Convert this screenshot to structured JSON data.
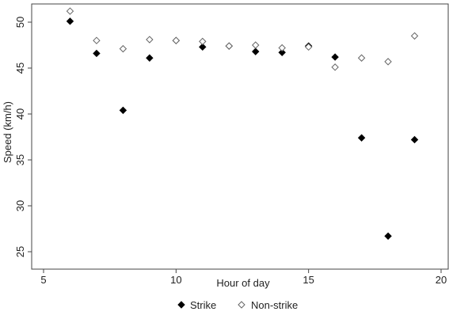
{
  "chart_data": {
    "type": "scatter",
    "title": "",
    "xlabel": "Hour of day",
    "ylabel": "Speed (km/h)",
    "xlim": [
      5,
      20
    ],
    "ylim": [
      25,
      52.5
    ],
    "x_ticks": [
      "5",
      "10",
      "15",
      "20"
    ],
    "y_ticks": [
      "25",
      "30",
      "35",
      "40",
      "45",
      "50"
    ],
    "grid": false,
    "legend_position": "bottom",
    "series": [
      {
        "name": "Strike",
        "marker": "filled-diamond",
        "color": "#000000",
        "points": [
          {
            "x": 6,
            "y": 50.1
          },
          {
            "x": 7,
            "y": 46.6
          },
          {
            "x": 8,
            "y": 40.4
          },
          {
            "x": 9,
            "y": 46.1
          },
          {
            "x": 10,
            "y": 48.0
          },
          {
            "x": 11,
            "y": 47.3
          },
          {
            "x": 12,
            "y": 47.4
          },
          {
            "x": 13,
            "y": 46.8
          },
          {
            "x": 14,
            "y": 46.7
          },
          {
            "x": 15,
            "y": 47.4
          },
          {
            "x": 16,
            "y": 46.2
          },
          {
            "x": 17,
            "y": 37.4
          },
          {
            "x": 18,
            "y": 26.7
          },
          {
            "x": 19,
            "y": 37.2
          }
        ]
      },
      {
        "name": "Non-strike",
        "marker": "hollow-diamond",
        "color": "#666666",
        "points": [
          {
            "x": 6,
            "y": 51.2
          },
          {
            "x": 7,
            "y": 48.0
          },
          {
            "x": 8,
            "y": 47.1
          },
          {
            "x": 9,
            "y": 48.1
          },
          {
            "x": 10,
            "y": 48.0
          },
          {
            "x": 11,
            "y": 47.9
          },
          {
            "x": 12,
            "y": 47.4
          },
          {
            "x": 13,
            "y": 47.5
          },
          {
            "x": 14,
            "y": 47.2
          },
          {
            "x": 15,
            "y": 47.3
          },
          {
            "x": 16,
            "y": 45.1
          },
          {
            "x": 17,
            "y": 46.1
          },
          {
            "x": 18,
            "y": 45.7
          },
          {
            "x": 19,
            "y": 48.5
          }
        ]
      }
    ]
  }
}
